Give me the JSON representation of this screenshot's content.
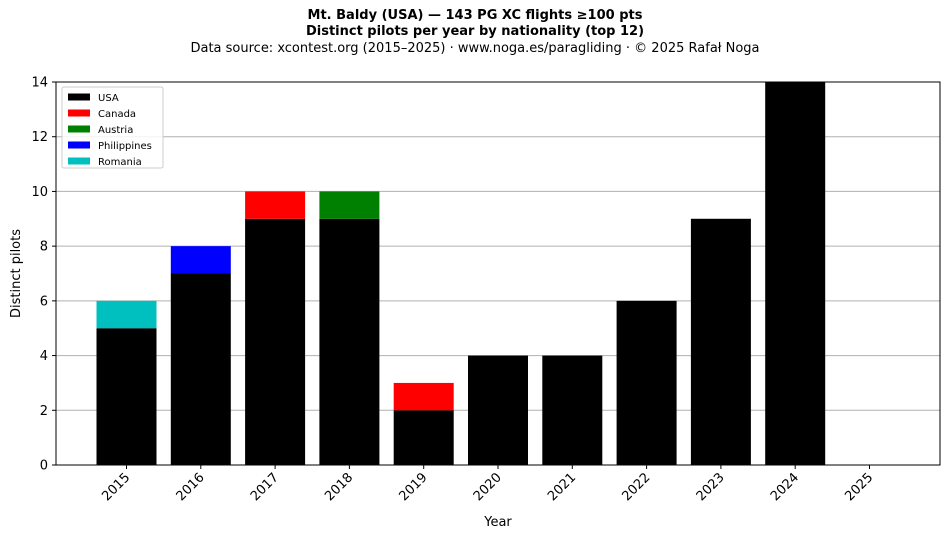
{
  "header": {
    "title": "Mt. Baldy (USA)  —  143 PG XC flights ≥100 pts",
    "subtitle": "Distinct pilots per year by nationality (top 12)",
    "source": "Data source: xcontest.org (2015–2025)  ·  www.noga.es/paragliding  ·  © 2025 Rafał Noga"
  },
  "chart_data": {
    "type": "bar",
    "stacked": true,
    "categories": [
      "2015",
      "2016",
      "2017",
      "2018",
      "2019",
      "2020",
      "2021",
      "2022",
      "2023",
      "2024",
      "2025"
    ],
    "series": [
      {
        "name": "USA",
        "color": "#000000",
        "values": [
          5,
          7,
          9,
          9,
          2,
          4,
          4,
          6,
          9,
          14,
          0
        ]
      },
      {
        "name": "Canada",
        "color": "#ff0000",
        "values": [
          0,
          0,
          1,
          0,
          1,
          0,
          0,
          0,
          0,
          0,
          0
        ]
      },
      {
        "name": "Austria",
        "color": "#008000",
        "values": [
          0,
          0,
          0,
          1,
          0,
          0,
          0,
          0,
          0,
          0,
          0
        ]
      },
      {
        "name": "Philippines",
        "color": "#0000ff",
        "values": [
          0,
          1,
          0,
          0,
          0,
          0,
          0,
          0,
          0,
          0,
          0
        ]
      },
      {
        "name": "Romania",
        "color": "#00bfbf",
        "values": [
          1,
          0,
          0,
          0,
          0,
          0,
          0,
          0,
          0,
          0,
          0
        ]
      }
    ],
    "xlabel": "Year",
    "ylabel": "Distinct pilots",
    "ylim": [
      0,
      14
    ],
    "yticks": [
      0,
      2,
      4,
      6,
      8,
      10,
      12,
      14
    ],
    "grid": "horizontal",
    "legend_position": "top-left"
  }
}
